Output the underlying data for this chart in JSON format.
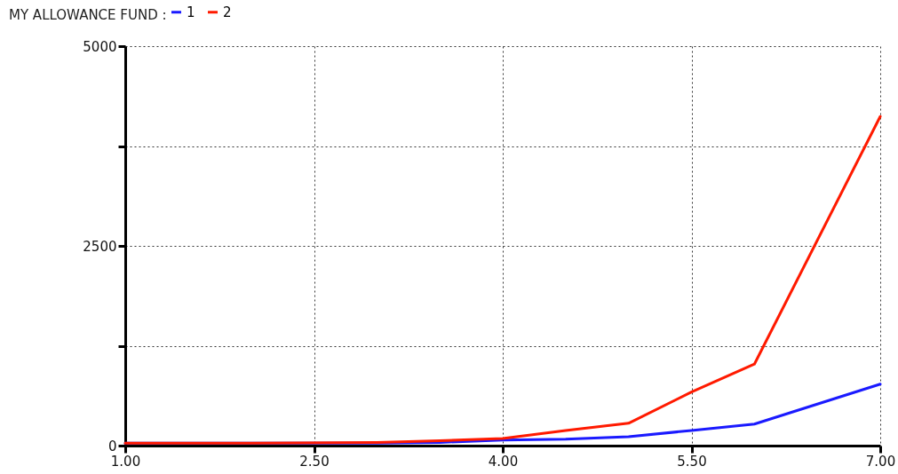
{
  "chart_data": {
    "type": "line",
    "title": "MY ALLOWANCE FUND :",
    "x": [
      1,
      2,
      3,
      3.5,
      4,
      4.5,
      5,
      5.5,
      6,
      7
    ],
    "series": [
      {
        "name": "1",
        "color": "#1a1aff",
        "values": [
          30,
          30,
          30,
          40,
          70,
          80,
          110,
          190,
          270,
          770
        ]
      },
      {
        "name": "2",
        "color": "#ff1a00",
        "values": [
          30,
          30,
          40,
          60,
          90,
          190,
          280,
          670,
          1020,
          4120
        ]
      }
    ],
    "xlim": [
      1,
      7
    ],
    "xticks": [
      {
        "value": 1,
        "label": "1.00"
      },
      {
        "value": 2.5,
        "label": "2.50"
      },
      {
        "value": 4,
        "label": "4.00"
      },
      {
        "value": 5.5,
        "label": "5.50"
      },
      {
        "value": 7,
        "label": "7.00"
      }
    ],
    "ylim": [
      0,
      5000
    ],
    "yticks": [
      0,
      {
        "value": 1250,
        "label": null
      },
      2500,
      {
        "value": 3750,
        "label": null
      },
      5000
    ],
    "grid": true,
    "legend": "top left",
    "line_style": "solid"
  }
}
